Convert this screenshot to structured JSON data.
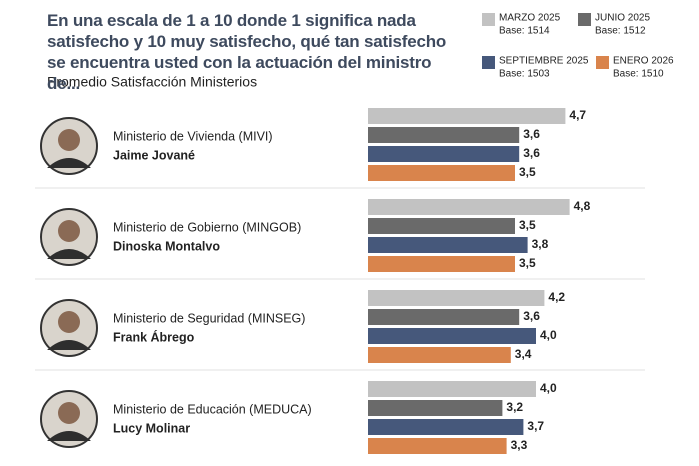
{
  "chart_data": {
    "type": "bar",
    "orientation": "horizontal",
    "title": "En una escala de 1 a 10 donde 1 significa nada satisfecho y 10 muy satisfecho, qué tan satisfecho se encuentra usted con la actuación del ministro de...",
    "subtitle": "Promedio Satisfacción Ministerios",
    "categories": [
      "Ministerio de Vivienda (MIVI)",
      "Ministerio de Gobierno (MINGOB)",
      "Ministerio de Seguridad (MINSEG)",
      "Ministerio de Educación (MEDUCA)"
    ],
    "persons": [
      "Jaime Jované",
      "Dinoska Montalvo",
      "Frank Ábrego",
      "Lucy Molinar"
    ],
    "xlim": [
      0,
      5
    ],
    "series": [
      {
        "name": "MARZO 2025",
        "base": "Base: 1514",
        "color": "#c2c2c2",
        "values": [
          4.7,
          4.8,
          4.2,
          4.0
        ],
        "value_labels": [
          "4,7",
          "4,8",
          "4,2",
          "4,0"
        ]
      },
      {
        "name": "JUNIO 2025",
        "base": "Base: 1512",
        "color": "#6a6a6a",
        "values": [
          3.6,
          3.5,
          3.6,
          3.2
        ],
        "value_labels": [
          "3,6",
          "3,5",
          "3,6",
          "3,2"
        ]
      },
      {
        "name": "SEPTIEMBRE 2025",
        "base": "Base: 1503",
        "color": "#46587b",
        "values": [
          3.6,
          3.8,
          4.0,
          3.7
        ],
        "value_labels": [
          "3,6",
          "3,8",
          "4,0",
          "3,7"
        ]
      },
      {
        "name": "ENERO 2026",
        "base": "Base: 1510",
        "color": "#d9844c",
        "values": [
          3.5,
          3.5,
          3.4,
          3.3
        ],
        "value_labels": [
          "3,5",
          "3,5",
          "3,4",
          "3,3"
        ]
      }
    ]
  }
}
